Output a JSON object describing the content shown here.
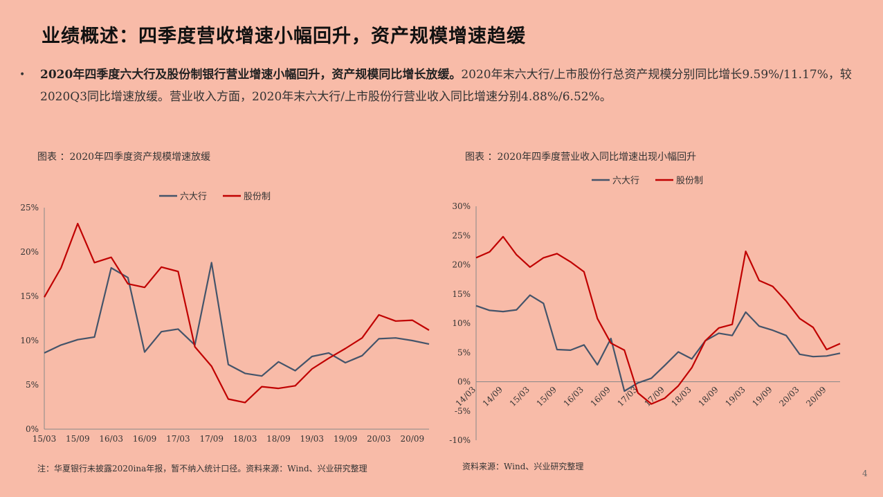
{
  "header": {
    "title": "业绩概述：四季度营收增速小幅回升，资产规模增速趋缓"
  },
  "bullet": {
    "marker": "•",
    "bold": "2020年四季度六大行及股份制银行营业增速小幅回升，资产规模同比增长放缓。",
    "text": "2020年末六大行/上市股份行总资产规模分别同比增长9.59%/11.17%，较2020Q3同比增速放缓。营业收入方面，2020年末六大行/上市股份行营业收入同比增速分别4.88%/6.52%。"
  },
  "left_panel": {
    "caption": "图表 ：2020年四季度资产规模增速放缓",
    "note": "注：华夏银行未披露2020ina年报，暂不纳入统计口径。资料来源：Wind、兴业研究整理"
  },
  "right_panel": {
    "caption": "图表 ：2020年四季度营业收入同比增速出现小幅回升",
    "note": "资料来源：Wind、兴业研究整理"
  },
  "page": {
    "number": "4"
  },
  "colors": {
    "big_six": "#44546A",
    "joint_stock": "#C00000"
  },
  "chart_data": [
    {
      "type": "line",
      "categories": [
        "15/03",
        "15/06",
        "15/09",
        "15/12",
        "16/03",
        "16/06",
        "16/09",
        "16/12",
        "17/03",
        "17/06",
        "17/09",
        "17/12",
        "18/03",
        "18/06",
        "18/09",
        "18/12",
        "19/03",
        "19/06",
        "19/09",
        "19/12",
        "20/03",
        "20/06",
        "20/09",
        "20/12"
      ],
      "tick_labels": [
        "15/03",
        "15/09",
        "16/03",
        "16/09",
        "17/03",
        "17/09",
        "18/03",
        "18/09",
        "19/03",
        "19/09",
        "20/03",
        "20/09"
      ],
      "ylim": [
        0,
        25
      ],
      "y_ticks": [
        "0%",
        "5%",
        "10%",
        "15%",
        "20%",
        "25%"
      ],
      "legend_position": "top-center",
      "series": [
        {
          "name": "六大行",
          "values": [
            8.6,
            9.5,
            10.1,
            10.4,
            18.2,
            17.1,
            8.7,
            11.0,
            11.3,
            9.5,
            18.8,
            7.3,
            6.3,
            6.0,
            7.6,
            6.6,
            8.2,
            8.6,
            7.5,
            8.3,
            10.2,
            10.3,
            10.0,
            9.6
          ]
        },
        {
          "name": "股份制",
          "values": [
            14.9,
            18.2,
            23.2,
            18.8,
            19.4,
            16.4,
            16.0,
            18.3,
            17.8,
            9.3,
            7.1,
            3.4,
            3.0,
            4.8,
            4.6,
            4.9,
            6.8,
            8.0,
            9.1,
            10.3,
            12.9,
            12.2,
            12.3,
            11.17
          ]
        }
      ]
    },
    {
      "type": "line",
      "categories": [
        "14/03",
        "14/06",
        "14/09",
        "14/12",
        "15/03",
        "15/06",
        "15/09",
        "15/12",
        "16/03",
        "16/06",
        "16/09",
        "16/12",
        "17/03",
        "17/06",
        "17/09",
        "17/12",
        "18/03",
        "18/06",
        "18/09",
        "18/12",
        "19/03",
        "19/06",
        "19/09",
        "19/12",
        "20/03",
        "20/06",
        "20/09",
        "20/12"
      ],
      "tick_labels": [
        "14/03",
        "14/09",
        "15/03",
        "15/09",
        "16/03",
        "16/09",
        "17/03",
        "17/09",
        "18/03",
        "18/09",
        "19/03",
        "19/09",
        "20/03",
        "20/09"
      ],
      "ylim": [
        -10,
        30
      ],
      "y_ticks": [
        "-10%",
        "-5%",
        "0%",
        "5%",
        "10%",
        "15%",
        "20%",
        "25%",
        "30%"
      ],
      "legend_position": "top-center",
      "series": [
        {
          "name": "六大行",
          "values": [
            13.0,
            12.2,
            12.0,
            12.3,
            14.8,
            13.4,
            5.5,
            5.4,
            6.3,
            2.9,
            7.4,
            -1.6,
            -0.2,
            0.6,
            2.8,
            5.1,
            3.9,
            7.0,
            8.3,
            7.9,
            11.9,
            9.5,
            8.8,
            7.9,
            4.7,
            4.3,
            4.4,
            4.88
          ]
        },
        {
          "name": "股份制",
          "values": [
            21.2,
            22.2,
            24.8,
            21.7,
            19.6,
            21.2,
            21.9,
            20.5,
            18.8,
            10.8,
            6.6,
            5.4,
            -1.9,
            -3.8,
            -2.8,
            -0.7,
            2.4,
            7.0,
            9.2,
            9.8,
            22.3,
            17.3,
            16.3,
            13.8,
            10.8,
            9.3,
            5.5,
            6.52
          ]
        }
      ]
    }
  ]
}
